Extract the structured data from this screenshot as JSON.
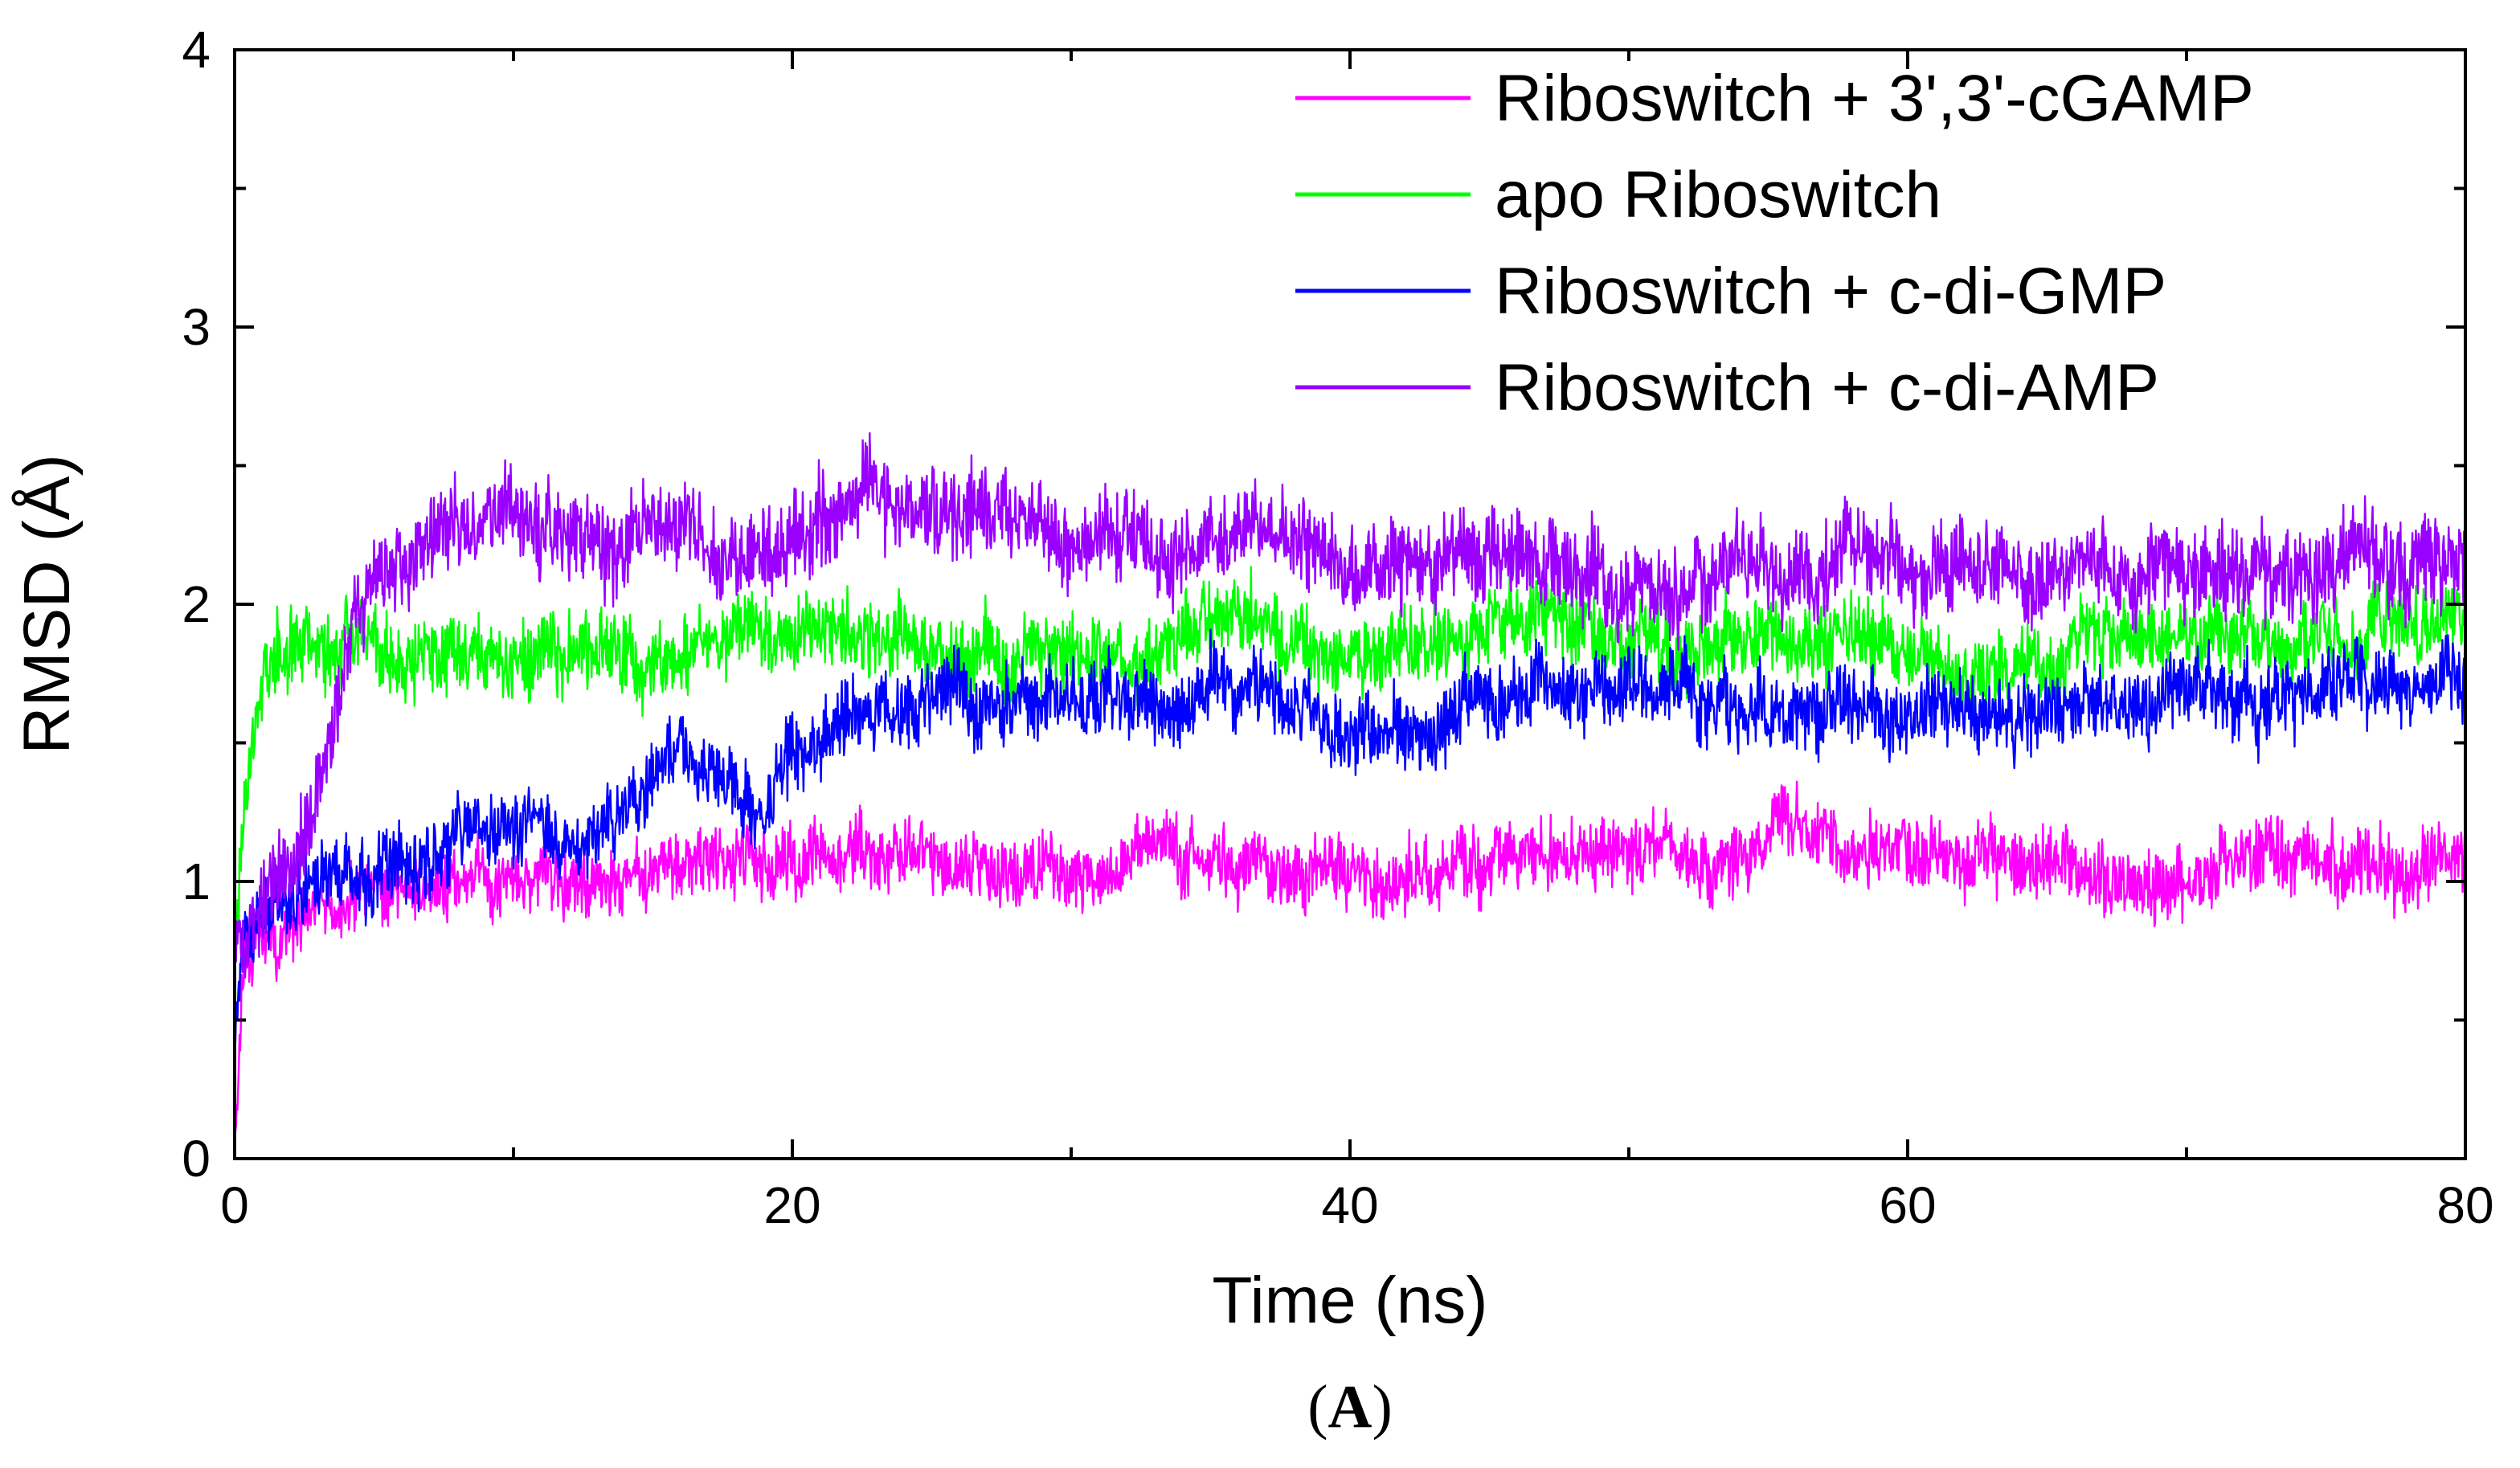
{
  "chart_data": {
    "type": "line",
    "title": "",
    "panel_label": "A",
    "xlabel": "Time (ns)",
    "ylabel": "RMSD (Å)",
    "xlim": [
      0,
      80
    ],
    "ylim": [
      0,
      4
    ],
    "xticks": [
      0,
      20,
      40,
      60,
      80
    ],
    "yticks": [
      0,
      1,
      2,
      3,
      4
    ],
    "grid": false,
    "legend_position": "top-right",
    "series": [
      {
        "name": "Riboswitch + 3',3'-cGAMP",
        "color": "#ff00ff",
        "noise": 0.09,
        "seed": 11,
        "x": [
          0,
          0.3,
          1,
          3,
          5,
          8,
          10,
          13,
          15,
          17,
          20,
          23,
          25,
          28,
          30,
          33,
          35,
          38,
          40,
          43,
          45,
          48,
          50,
          53,
          55,
          58,
          60,
          63,
          65,
          68,
          70,
          73,
          75,
          78,
          80
        ],
        "y": [
          0,
          0.75,
          0.85,
          0.9,
          0.95,
          1.0,
          1.0,
          1.0,
          1.02,
          1.05,
          1.05,
          1.05,
          1.08,
          1.05,
          1.05,
          1.05,
          1.08,
          1.05,
          1.05,
          1.05,
          1.05,
          1.08,
          1.1,
          1.1,
          1.2,
          1.1,
          1.1,
          1.05,
          1.05,
          1.0,
          1.05,
          1.1,
          1.05,
          1.05,
          1.1
        ]
      },
      {
        "name": "apo Riboswitch",
        "color": "#00ff00",
        "noise": 0.1,
        "seed": 23,
        "x": [
          0,
          0.3,
          1,
          2,
          3,
          4.5,
          6,
          8,
          10,
          13,
          15,
          18,
          20,
          22,
          25,
          28,
          30,
          33,
          35,
          38,
          40,
          43,
          45,
          48,
          50,
          53,
          55,
          58,
          60,
          63,
          65,
          68,
          70,
          73,
          75,
          78,
          80
        ],
        "y": [
          0.7,
          1.3,
          1.75,
          1.85,
          1.85,
          1.9,
          1.75,
          1.8,
          1.8,
          1.85,
          1.8,
          1.9,
          1.9,
          1.95,
          1.85,
          1.8,
          1.8,
          1.85,
          1.95,
          1.85,
          1.85,
          1.85,
          2.0,
          1.95,
          1.9,
          1.85,
          1.85,
          1.9,
          1.8,
          1.75,
          1.8,
          1.85,
          1.9,
          1.85,
          1.9,
          1.95,
          2.0
        ]
      },
      {
        "name": "Riboswitch + c-di-GMP",
        "color": "#0000ff",
        "noise": 0.1,
        "seed": 37,
        "x": [
          0,
          0.3,
          1,
          3,
          5,
          8,
          10,
          12,
          14,
          16,
          18,
          19,
          20,
          22,
          25,
          28,
          30,
          33,
          35,
          38,
          40,
          43,
          45,
          48,
          50,
          53,
          55,
          58,
          60,
          63,
          65,
          68,
          70,
          73,
          75,
          78,
          80
        ],
        "y": [
          0.5,
          0.8,
          0.9,
          1.0,
          1.0,
          1.15,
          1.2,
          1.15,
          1.2,
          1.5,
          1.3,
          1.2,
          1.5,
          1.6,
          1.7,
          1.65,
          1.65,
          1.65,
          1.7,
          1.6,
          1.5,
          1.55,
          1.65,
          1.7,
          1.7,
          1.65,
          1.6,
          1.6,
          1.65,
          1.6,
          1.65,
          1.65,
          1.7,
          1.65,
          1.7,
          1.65,
          1.7
        ]
      },
      {
        "name": "Riboswitch + c-di-AMP",
        "color": "#9900ff",
        "noise": 0.12,
        "seed": 53,
        "x": [
          0,
          0.5,
          2,
          3.5,
          4.5,
          6,
          8,
          10,
          13,
          15,
          18,
          20,
          22,
          23,
          25,
          28,
          30,
          33,
          35,
          38,
          40,
          43,
          45,
          48,
          50,
          53,
          55,
          58,
          60,
          63,
          65,
          68,
          70,
          73,
          75,
          78,
          80
        ],
        "y": [
          0.8,
          0.9,
          1.0,
          1.5,
          2.1,
          2.2,
          2.25,
          2.3,
          2.2,
          2.25,
          2.2,
          2.3,
          2.4,
          2.5,
          2.35,
          2.3,
          2.2,
          2.2,
          2.3,
          2.2,
          2.15,
          2.1,
          2.15,
          2.1,
          2.1,
          2.1,
          2.1,
          2.15,
          2.1,
          2.1,
          2.1,
          2.1,
          2.1,
          2.1,
          2.1,
          2.15,
          2.15
        ]
      }
    ]
  }
}
